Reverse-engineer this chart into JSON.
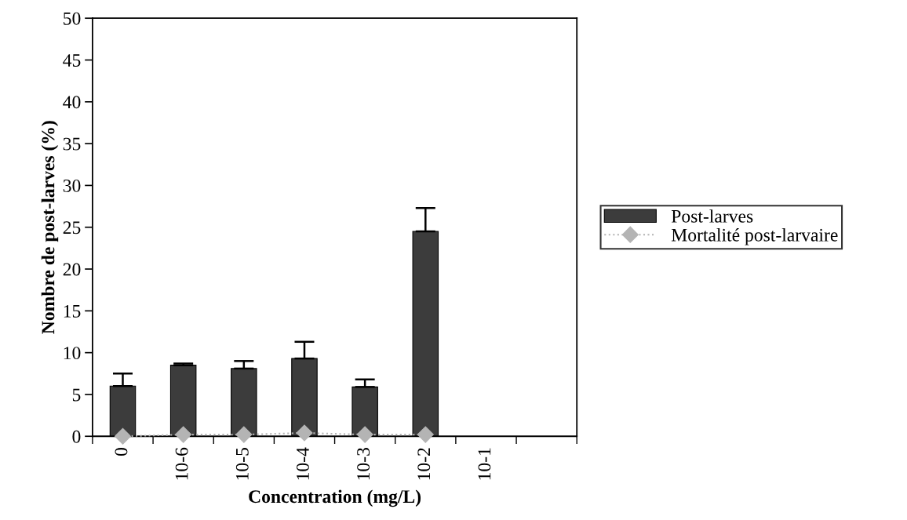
{
  "chart_data": {
    "type": "bar",
    "xlabel": "Concentration (mg/L)",
    "ylabel": "Nombre de post-larves (%)",
    "categories": [
      "0",
      "10-6",
      "10-5",
      "10-4",
      "10-3",
      "10-2",
      "10-1",
      null
    ],
    "series": [
      {
        "name": "Post-larves",
        "color": "#3c3c3c",
        "values": [
          6.0,
          8.5,
          8.1,
          9.3,
          5.9,
          24.5,
          null,
          null
        ],
        "errors": [
          [
            6.0,
            7.5
          ],
          [
            8.5,
            8.7
          ],
          [
            8.1,
            9.0
          ],
          [
            9.3,
            11.3
          ],
          [
            5.9,
            6.8
          ],
          [
            24.5,
            27.3
          ],
          null,
          null
        ]
      },
      {
        "name": "Mortalité post-larvaire",
        "type": "line",
        "color": "#b4b4b4",
        "marker": "diamond",
        "line_style": "dotted",
        "values": [
          0.0,
          0.2,
          0.2,
          0.4,
          0.2,
          0.2,
          null,
          null
        ]
      }
    ],
    "ylim": [
      0,
      50
    ],
    "yticks": [
      0,
      5,
      10,
      15,
      20,
      25,
      30,
      35,
      40,
      45,
      50
    ],
    "grid": false,
    "legend": "right"
  }
}
